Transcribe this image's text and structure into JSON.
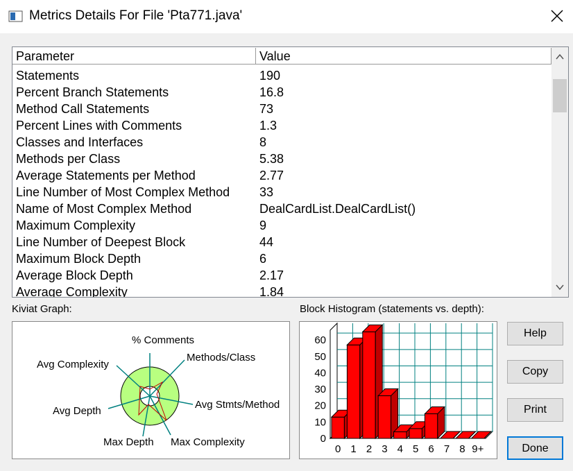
{
  "window": {
    "title": "Metrics Details For File 'Pta771.java'"
  },
  "table": {
    "header": [
      "Parameter",
      "Value"
    ],
    "rows": [
      [
        "Statements",
        "190"
      ],
      [
        "Percent Branch Statements",
        "16.8"
      ],
      [
        "Method Call Statements",
        "73"
      ],
      [
        "Percent Lines with Comments",
        "1.3"
      ],
      [
        "Classes and Interfaces",
        "8"
      ],
      [
        "Methods per Class",
        "5.38"
      ],
      [
        "Average Statements per Method",
        "2.77"
      ],
      [
        "Line Number of Most Complex Method",
        "33"
      ],
      [
        "Name of Most Complex Method",
        "DealCardList.DealCardList()"
      ],
      [
        "Maximum Complexity",
        "9"
      ],
      [
        "Line Number of Deepest Block",
        "44"
      ],
      [
        "Maximum Block Depth",
        "6"
      ],
      [
        "Average Block Depth",
        "2.17"
      ],
      [
        "Average Complexity",
        "1.84"
      ]
    ]
  },
  "kiviat": {
    "label": "Kiviat Graph:",
    "axes": [
      "% Comments",
      "Methods/Class",
      "Avg Stmts/Method",
      "Max Complexity",
      "Max Depth",
      "Avg Depth",
      "Avg Complexity"
    ]
  },
  "histogram": {
    "type": "bar",
    "label": "Block Histogram (statements vs. depth):",
    "categories": [
      "0",
      "1",
      "2",
      "3",
      "4",
      "5",
      "6",
      "7",
      "8",
      "9+"
    ],
    "values": [
      13,
      57,
      65,
      26,
      4,
      6,
      15,
      0,
      0,
      0
    ],
    "color": "#ff0000",
    "ylim": [
      0,
      66
    ],
    "yticks": [
      0,
      10,
      20,
      30,
      40,
      50,
      60
    ],
    "grid": true
  },
  "buttons": [
    "Help",
    "Copy",
    "Print",
    "Done"
  ]
}
